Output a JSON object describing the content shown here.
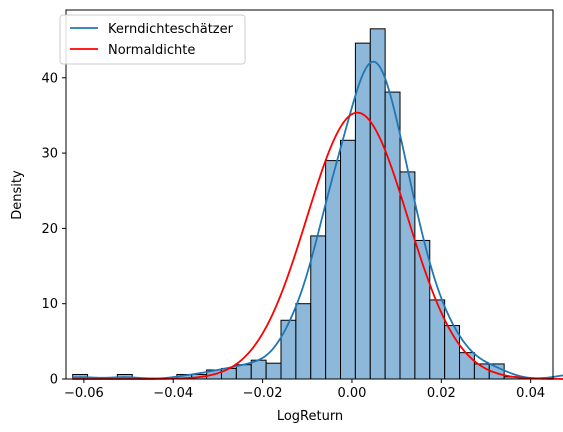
{
  "chart_data": {
    "type": "bar",
    "xlabel": "LogReturn",
    "ylabel": "Density",
    "xlim": [
      -0.064,
      0.045
    ],
    "ylim": [
      0,
      49
    ],
    "xticks": [
      -0.06,
      -0.04,
      -0.02,
      0.0,
      0.02,
      0.04
    ],
    "xtick_labels": [
      "−0.06",
      "−0.04",
      "−0.02",
      "0.00",
      "0.02",
      "0.04"
    ],
    "yticks": [
      0,
      10,
      20,
      30,
      40
    ],
    "ytick_labels": [
      "0",
      "10",
      "20",
      "30",
      "40"
    ],
    "legend_position": "top-left",
    "histogram": {
      "bin_start": -0.0625,
      "bin_width": 0.00333,
      "color": "#8db8da",
      "edge_color": "#000000",
      "values": [
        0.6,
        0,
        0,
        0.6,
        0,
        0,
        0,
        0.6,
        0.6,
        1.2,
        1.4,
        1.9,
        2.5,
        2.1,
        7.8,
        10.0,
        19.0,
        29.0,
        31.7,
        44.6,
        46.5,
        38.1,
        27.5,
        18.4,
        10.5,
        7.1,
        3.5,
        2.0,
        2.0,
        0.3,
        0,
        0,
        0,
        1.4
      ]
    },
    "series": [
      {
        "name": "Kerndichteschätzer",
        "color": "#1f77b4",
        "kind": "kde"
      },
      {
        "name": "Normaldichte",
        "color": "#ff0000",
        "kind": "normal",
        "mean": 0.0012,
        "std": 0.01128
      }
    ]
  }
}
